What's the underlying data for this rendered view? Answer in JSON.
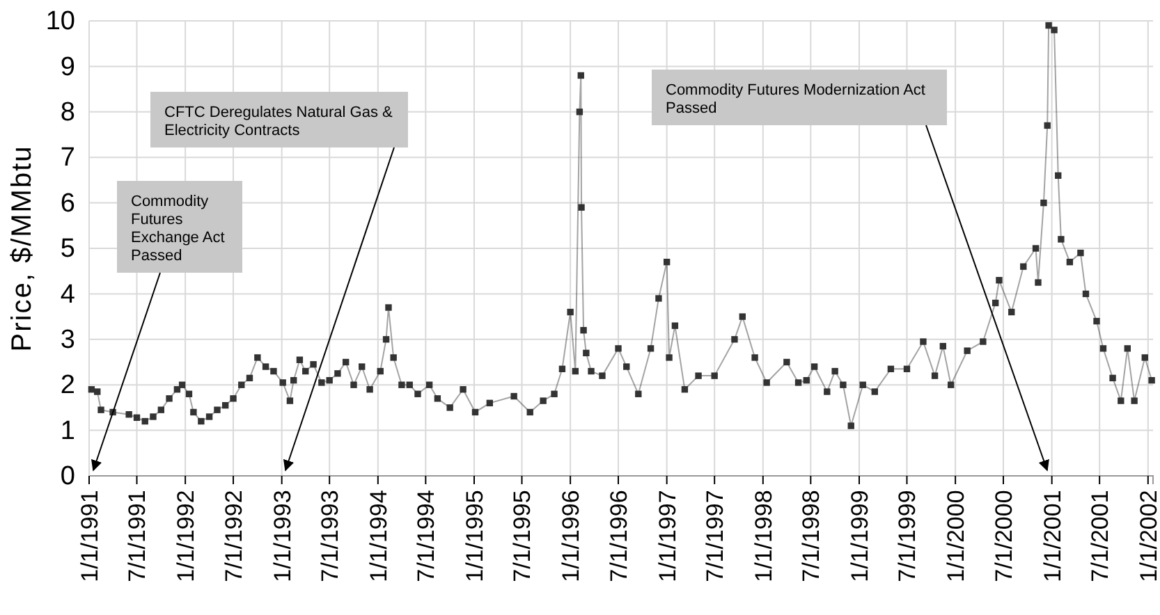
{
  "chart_data": {
    "type": "line",
    "ylabel": "Price, $/MMbtu",
    "marker": "square",
    "grid": true,
    "xlim": [
      "1991-01-01",
      "2002-01-20"
    ],
    "xticks": [
      {
        "value": "1991-01-01",
        "label": "1/1/1991"
      },
      {
        "value": "1991-07-01",
        "label": "7/1/1991"
      },
      {
        "value": "1992-01-01",
        "label": "1/1/1992"
      },
      {
        "value": "1992-07-01",
        "label": "7/1/1992"
      },
      {
        "value": "1993-01-01",
        "label": "1/1/1993"
      },
      {
        "value": "1993-07-01",
        "label": "7/1/1993"
      },
      {
        "value": "1994-01-01",
        "label": "1/1/1994"
      },
      {
        "value": "1994-07-01",
        "label": "7/1/1994"
      },
      {
        "value": "1995-01-01",
        "label": "1/1/1995"
      },
      {
        "value": "1995-07-01",
        "label": "7/1/1995"
      },
      {
        "value": "1996-01-01",
        "label": "1/1/1996"
      },
      {
        "value": "1996-07-01",
        "label": "7/1/1996"
      },
      {
        "value": "1997-01-01",
        "label": "1/1/1997"
      },
      {
        "value": "1997-07-01",
        "label": "7/1/1997"
      },
      {
        "value": "1998-01-01",
        "label": "1/1/1998"
      },
      {
        "value": "1998-07-01",
        "label": "7/1/1998"
      },
      {
        "value": "1999-01-01",
        "label": "1/1/1999"
      },
      {
        "value": "1999-07-01",
        "label": "7/1/1999"
      },
      {
        "value": "2000-01-01",
        "label": "1/1/2000"
      },
      {
        "value": "2000-07-01",
        "label": "7/1/2000"
      },
      {
        "value": "2001-01-01",
        "label": "1/1/2001"
      },
      {
        "value": "2001-07-01",
        "label": "7/1/2001"
      },
      {
        "value": "2002-01-01",
        "label": "1/1/2002"
      }
    ],
    "ylim": [
      0,
      10
    ],
    "yticks": [
      0,
      1,
      2,
      3,
      4,
      5,
      6,
      7,
      8,
      9,
      10
    ],
    "x": [
      "1991-01-10",
      "1991-02-01",
      "1991-02-15",
      "1991-04-01",
      "1991-06-01",
      "1991-07-01",
      "1991-08-01",
      "1991-09-01",
      "1991-10-01",
      "1991-11-01",
      "1991-12-01",
      "1991-12-20",
      "1992-01-15",
      "1992-02-01",
      "1992-03-01",
      "1992-04-01",
      "1992-05-01",
      "1992-06-01",
      "1992-07-01",
      "1992-08-01",
      "1992-09-01",
      "1992-10-01",
      "1992-11-01",
      "1992-12-01",
      "1993-01-05",
      "1993-02-01",
      "1993-02-15",
      "1993-03-10",
      "1993-04-01",
      "1993-05-01",
      "1993-06-01",
      "1993-07-01",
      "1993-08-01",
      "1993-09-01",
      "1993-10-01",
      "1993-11-01",
      "1993-12-01",
      "1994-01-10",
      "1994-02-01",
      "1994-02-10",
      "1994-03-01",
      "1994-04-01",
      "1994-05-01",
      "1994-06-01",
      "1994-07-15",
      "1994-08-15",
      "1994-10-01",
      "1994-11-20",
      "1995-01-05",
      "1995-03-01",
      "1995-06-01",
      "1995-08-01",
      "1995-09-20",
      "1995-11-01",
      "1995-12-01",
      "1996-01-01",
      "1996-01-20",
      "1996-02-05",
      "1996-02-10",
      "1996-02-12",
      "1996-02-20",
      "1996-03-01",
      "1996-03-20",
      "1996-05-01",
      "1996-07-01",
      "1996-08-01",
      "1996-09-15",
      "1996-11-01",
      "1996-12-01",
      "1997-01-01",
      "1997-01-10",
      "1997-02-01",
      "1997-03-10",
      "1997-05-01",
      "1997-07-01",
      "1997-09-15",
      "1997-10-15",
      "1997-12-01",
      "1998-01-15",
      "1998-04-01",
      "1998-05-15",
      "1998-06-15",
      "1998-07-15",
      "1998-09-01",
      "1998-10-01",
      "1998-11-01",
      "1998-12-01",
      "1999-01-15",
      "1999-03-01",
      "1999-05-01",
      "1999-07-01",
      "1999-09-01",
      "1999-10-15",
      "1999-11-15",
      "1999-12-15",
      "2000-02-15",
      "2000-04-15",
      "2000-06-01",
      "2000-06-15",
      "2000-08-01",
      "2000-09-15",
      "2000-11-01",
      "2000-11-10",
      "2000-12-01",
      "2000-12-15",
      "2000-12-20",
      "2001-01-10",
      "2001-01-25",
      "2001-02-05",
      "2001-03-10",
      "2001-04-20",
      "2001-05-10",
      "2001-06-20",
      "2001-07-15",
      "2001-08-20",
      "2001-09-20",
      "2001-10-15",
      "2001-11-10",
      "2001-12-20",
      "2002-01-15"
    ],
    "series": [
      {
        "color": "#333333",
        "values": [
          1.9,
          1.85,
          1.45,
          1.4,
          1.35,
          1.28,
          1.2,
          1.3,
          1.45,
          1.7,
          1.9,
          2.0,
          1.8,
          1.4,
          1.2,
          1.3,
          1.45,
          1.55,
          1.7,
          2.0,
          2.15,
          2.6,
          2.4,
          2.3,
          2.05,
          1.65,
          2.1,
          2.55,
          2.3,
          2.45,
          2.05,
          2.1,
          2.25,
          2.5,
          2.0,
          2.4,
          1.9,
          2.3,
          3.0,
          3.7,
          2.6,
          2.0,
          2.0,
          1.8,
          2.0,
          1.7,
          1.5,
          1.9,
          1.4,
          1.6,
          1.75,
          1.4,
          1.65,
          1.8,
          2.35,
          3.6,
          2.3,
          8.0,
          8.8,
          5.9,
          3.2,
          2.7,
          2.3,
          2.2,
          2.8,
          2.4,
          1.8,
          2.8,
          3.9,
          4.7,
          2.6,
          3.3,
          1.9,
          2.2,
          2.2,
          3.0,
          3.5,
          2.6,
          2.05,
          2.5,
          2.05,
          2.1,
          2.4,
          1.85,
          2.3,
          2.0,
          1.1,
          2.0,
          1.85,
          2.35,
          2.35,
          2.95,
          2.2,
          2.85,
          2.0,
          2.75,
          2.95,
          3.8,
          4.3,
          3.6,
          4.6,
          5.0,
          4.25,
          6.0,
          7.7,
          9.9,
          9.8,
          6.6,
          5.2,
          4.7,
          4.9,
          4.0,
          3.4,
          2.8,
          2.15,
          1.65,
          2.8,
          1.65,
          2.6,
          2.1
        ]
      }
    ],
    "annotations": [
      "Commodity Futures Exchange Act Passed",
      "CFTC Deregulates Natural Gas & Electricity Contracts",
      "Commodity Futures Modernization Act Passed"
    ]
  }
}
